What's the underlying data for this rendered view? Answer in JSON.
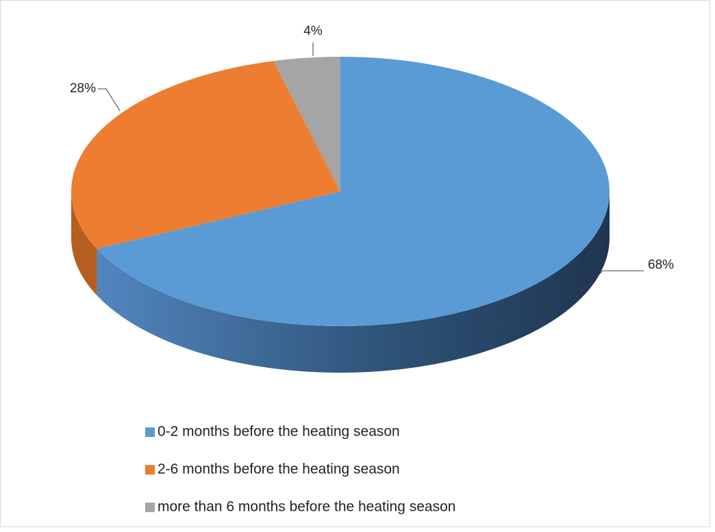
{
  "chart_data": {
    "type": "pie",
    "categories": [
      "0-2 months before the heating season",
      "2-6 months before the heating season",
      "more than 6 months before the heating season"
    ],
    "values": [
      68,
      28,
      4
    ],
    "value_labels": [
      "68%",
      "28%",
      "4%"
    ],
    "colors": [
      "#5b9bd5",
      "#ed7d31",
      "#a5a5a5"
    ],
    "legend": "bottom"
  }
}
